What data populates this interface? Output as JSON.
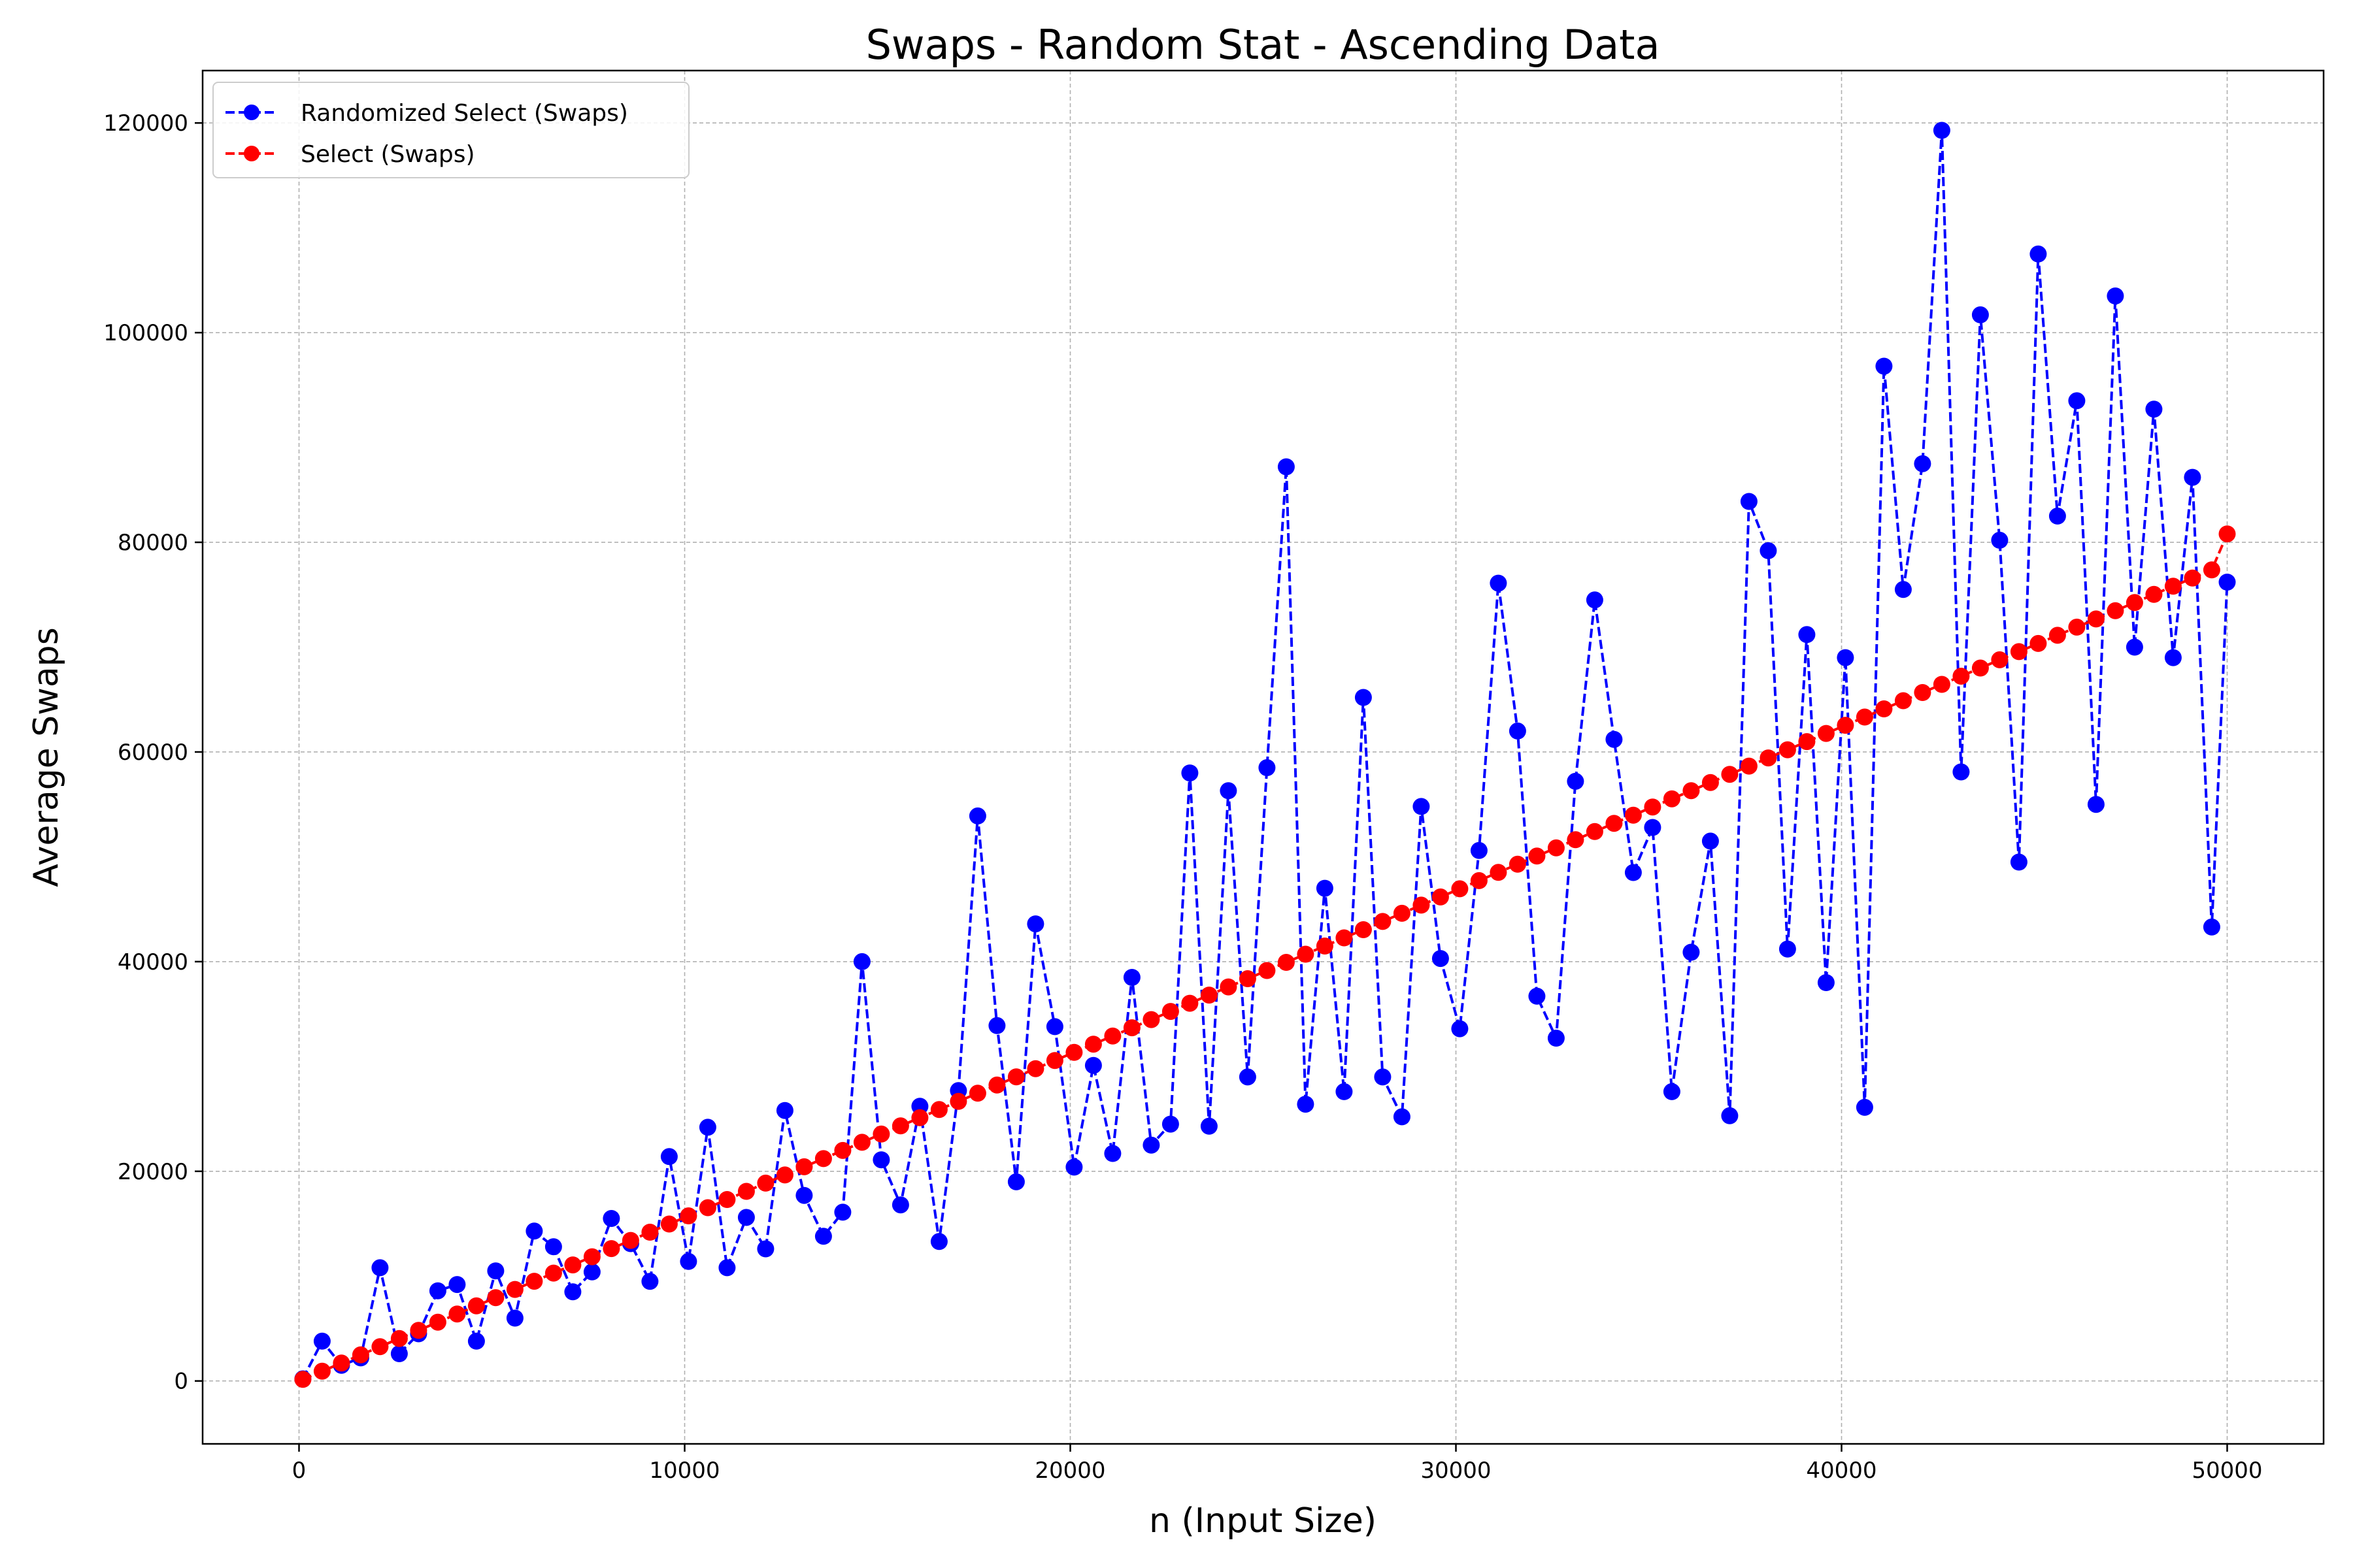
{
  "chart_data": {
    "type": "line",
    "title": "Swaps - Random Stat - Ascending Data",
    "xlabel": "n (Input Size)",
    "ylabel": "Average Swaps",
    "xlim": [
      -2500,
      52500
    ],
    "ylim": [
      -6000,
      125000
    ],
    "xticks": [
      0,
      10000,
      20000,
      30000,
      40000,
      50000
    ],
    "yticks": [
      0,
      20000,
      40000,
      60000,
      80000,
      100000,
      120000
    ],
    "xtick_labels": [
      "0",
      "10000",
      "20000",
      "30000",
      "40000",
      "50000"
    ],
    "ytick_labels": [
      "0",
      "20000",
      "40000",
      "60000",
      "80000",
      "100000",
      "120000"
    ],
    "grid": true,
    "legend_position": "top-left",
    "line_style": "dashed",
    "marker": "circle",
    "x": [
      100,
      600,
      1100,
      1600,
      2100,
      2600,
      3100,
      3600,
      4100,
      4600,
      5100,
      5600,
      6100,
      6600,
      7100,
      7600,
      8100,
      8600,
      9100,
      9600,
      10100,
      10600,
      11100,
      11600,
      12100,
      12600,
      13100,
      13600,
      14100,
      14600,
      15100,
      15600,
      16100,
      16600,
      17100,
      17600,
      18100,
      18600,
      19100,
      19600,
      20100,
      20600,
      21100,
      21600,
      22100,
      22600,
      23100,
      23600,
      24100,
      24600,
      25100,
      25600,
      26100,
      26600,
      27100,
      27600,
      28100,
      28600,
      29100,
      29600,
      30100,
      30600,
      31100,
      31600,
      32100,
      32600,
      33100,
      33600,
      34100,
      34600,
      35100,
      35600,
      36100,
      36600,
      37100,
      37600,
      38100,
      38600,
      39100,
      39600,
      40100,
      40600,
      41100,
      41600,
      42100,
      42600,
      43100,
      43600,
      44100,
      44600,
      45100,
      45600,
      46100,
      46600,
      47100,
      47600,
      48100,
      48600,
      49100,
      49600,
      50000
    ],
    "series": [
      {
        "name": "Randomized Select (Swaps)",
        "color": "#0000ff",
        "values": [
          200,
          3800,
          1500,
          2200,
          10800,
          2600,
          4500,
          8600,
          9200,
          3800,
          10500,
          6000,
          14300,
          12800,
          8500,
          10400,
          15500,
          13100,
          9500,
          21400,
          11400,
          24200,
          10800,
          15600,
          12600,
          25800,
          17700,
          13800,
          16100,
          40000,
          21100,
          16800,
          26200,
          13300,
          27700,
          53900,
          33900,
          19000,
          43600,
          33800,
          20400,
          30100,
          21700,
          38500,
          22500,
          24500,
          58000,
          24300,
          56300,
          29000,
          58500,
          87200,
          26400,
          47000,
          27600,
          65200,
          29000,
          25200,
          54800,
          40300,
          33600,
          50600,
          76100,
          62000,
          36700,
          32700,
          57200,
          74500,
          61200,
          48500,
          52800,
          27600,
          40900,
          51500,
          25300,
          83900,
          79200,
          41200,
          71200,
          38000,
          69000,
          26100,
          96800,
          75500,
          87500,
          119300,
          58100,
          101700,
          80200,
          49500,
          107500,
          82500,
          93500,
          55000,
          103500,
          70000,
          92700,
          69000,
          86200,
          43300,
          76200
        ]
      },
      {
        "name": "Select (Swaps)",
        "color": "#ff0000",
        "values": [
          150,
          930,
          1710,
          2490,
          3270,
          4050,
          4830,
          5610,
          6390,
          7170,
          7950,
          8730,
          9510,
          10290,
          11070,
          11850,
          12630,
          13410,
          14190,
          14970,
          15750,
          16530,
          17310,
          18090,
          18870,
          19650,
          20430,
          21210,
          21990,
          22770,
          23550,
          24330,
          25110,
          25890,
          26670,
          27450,
          28230,
          29010,
          29790,
          30570,
          31350,
          32130,
          32910,
          33690,
          34470,
          35250,
          36030,
          36810,
          37590,
          38370,
          39150,
          39930,
          40710,
          41490,
          42270,
          43050,
          43830,
          44610,
          45390,
          46170,
          46950,
          47730,
          48510,
          49290,
          50070,
          50850,
          51630,
          52410,
          53190,
          53970,
          54750,
          55530,
          56310,
          57090,
          57870,
          58650,
          59430,
          60210,
          60990,
          61770,
          62550,
          63330,
          64110,
          64890,
          65670,
          66450,
          67230,
          68010,
          68790,
          69570,
          70350,
          71130,
          71910,
          72690,
          73470,
          74250,
          75030,
          75810,
          76590,
          77370,
          80800
        ]
      }
    ]
  }
}
